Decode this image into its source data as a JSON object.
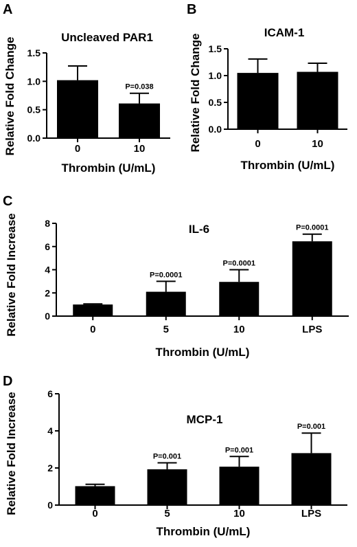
{
  "chart_data": [
    {
      "panel": "A",
      "type": "bar",
      "title": "Uncleaved PAR1",
      "xlabel": "Thrombin (U/mL)",
      "ylabel": "Relative Fold Change",
      "categories": [
        "0",
        "10"
      ],
      "values": [
        1.02,
        0.61
      ],
      "errors": [
        0.25,
        0.18
      ],
      "annotations": [
        "",
        "P=0.038"
      ],
      "ylim": [
        0,
        1.5
      ],
      "yticks": [
        "0.0",
        "0.5",
        "1.0",
        "1.5"
      ],
      "grid": false,
      "legend": "none"
    },
    {
      "panel": "B",
      "type": "bar",
      "title": "ICAM-1",
      "xlabel": "Thrombin (U/mL)",
      "ylabel": "Relative Fold Change",
      "categories": [
        "0",
        "10"
      ],
      "values": [
        1.05,
        1.07
      ],
      "errors": [
        0.26,
        0.16
      ],
      "annotations": [
        "",
        ""
      ],
      "ylim": [
        0,
        1.5
      ],
      "yticks": [
        "0.0",
        "0.5",
        "1.0",
        "1.5"
      ],
      "grid": false,
      "legend": "none"
    },
    {
      "panel": "C",
      "type": "bar",
      "title": "IL-6",
      "xlabel": "Thrombin (U/mL)",
      "ylabel": "Relative Fold Increase",
      "categories": [
        "0",
        "5",
        "10",
        "LPS"
      ],
      "values": [
        1.0,
        2.1,
        2.95,
        6.45
      ],
      "errors": [
        0.05,
        0.9,
        1.05,
        0.62
      ],
      "annotations": [
        "",
        "P=0.0001",
        "P=0.0001",
        "P=0.0001"
      ],
      "ylim": [
        0,
        8
      ],
      "yticks": [
        "0",
        "2",
        "4",
        "6",
        "8"
      ],
      "grid": false,
      "legend": "none"
    },
    {
      "panel": "D",
      "type": "bar",
      "title": "MCP-1",
      "xlabel": "Thrombin (U/mL)",
      "ylabel": "Relative Fold Increase",
      "categories": [
        "0",
        "5",
        "10",
        "LPS"
      ],
      "values": [
        1.02,
        1.93,
        2.07,
        2.8
      ],
      "errors": [
        0.1,
        0.35,
        0.55,
        1.08
      ],
      "annotations": [
        "",
        "P=0.001",
        "P=0.001",
        "P=0.001"
      ],
      "ylim": [
        0,
        6
      ],
      "yticks": [
        "0",
        "2",
        "4",
        "6"
      ],
      "grid": false,
      "legend": "none"
    }
  ],
  "colors": {
    "bar": "#000000",
    "axis": "#000000"
  }
}
